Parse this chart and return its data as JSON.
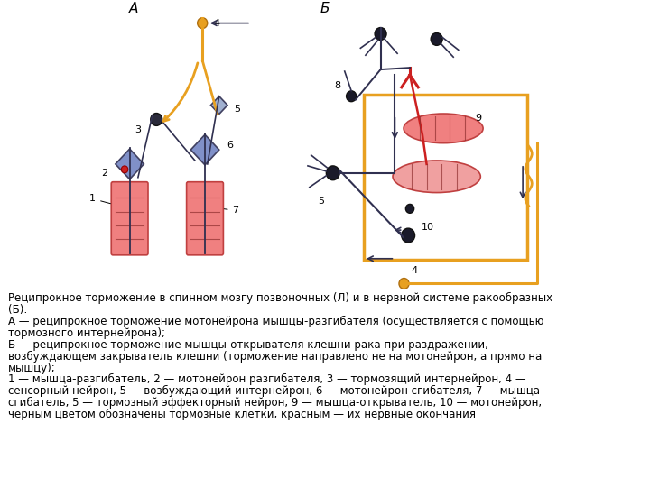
{
  "title_A": "А",
  "title_B": "Б",
  "bg_color": "#ffffff",
  "muscle_color": "#f08080",
  "neuron_color_blue": "#7090c0",
  "neuron_dark": "#2a2a3a",
  "orange_color": "#e8a020",
  "red_color": "#cc2020",
  "line_dark": "#303050",
  "caption_lines": [
    "Реципрокное торможение в спинном мозгу позвоночных (Л) и в нервной системе ракообразных",
    "(Б):",
    "А — реципрокное торможение мотонейрона мышцы-разгибателя (осуществляется с помощью",
    "тормозного интернейрона);",
    "Б — реципрокное торможение мышцы-открывателя клешни рака при раздражении,",
    "возбуждающем закрыватель клешни (торможение направлено не на мотонейрон, а прямо на",
    "мышцу);",
    "1 — мышца-разгибатель, 2 — мотонейрон разгибателя, 3 — тормозящий интернейрон, 4 —",
    "сенсорный нейрон, 5 — возбуждающий интернейрон, 6 — мотонейрон сгибателя, 7 — мышца-",
    "сгибатель, 5 — тормозный эффекторный нейрон, 9 — мышца-открыватель, 10 — мотонейрон;",
    "черным цветом обозначены тормозные клетки, красным — их нервные окончания"
  ],
  "fontsize_caption": 8.5
}
